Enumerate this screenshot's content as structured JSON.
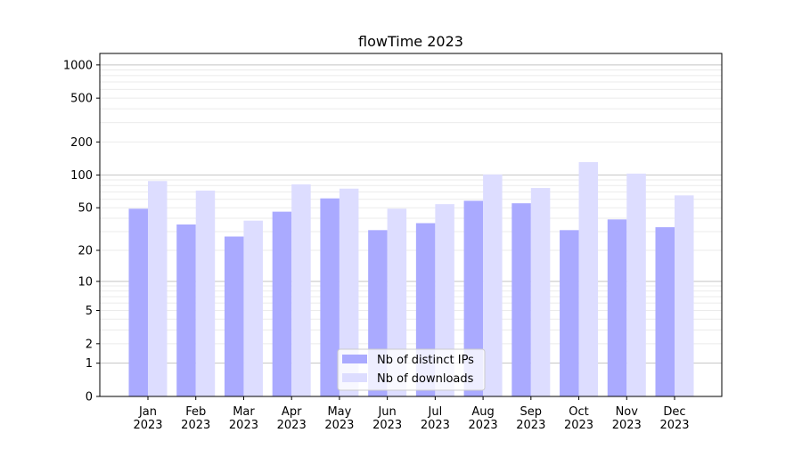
{
  "chart_data": {
    "type": "bar",
    "title": "flowTime 2023",
    "xlabel": "",
    "ylabel": "",
    "yscale": "log(x+1)",
    "ylim": [
      0,
      1270
    ],
    "yticks": [
      0,
      1,
      2,
      5,
      10,
      20,
      50,
      100,
      200,
      500,
      1000
    ],
    "grid": true,
    "legend_position": "lower-center",
    "categories": [
      "Jan\n2023",
      "Feb\n2023",
      "Mar\n2023",
      "Apr\n2023",
      "May\n2023",
      "Jun\n2023",
      "Jul\n2023",
      "Aug\n2023",
      "Sep\n2023",
      "Oct\n2023",
      "Nov\n2023",
      "Dec\n2023"
    ],
    "series": [
      {
        "name": "Nb of distinct IPs",
        "color": "#aaaaff",
        "values": [
          49,
          35,
          27,
          46,
          61,
          31,
          36,
          58,
          55,
          31,
          39,
          33
        ]
      },
      {
        "name": "Nb of downloads",
        "color": "#ddddff",
        "values": [
          88,
          72,
          38,
          82,
          75,
          49,
          54,
          101,
          76,
          131,
          103,
          65
        ]
      }
    ]
  }
}
